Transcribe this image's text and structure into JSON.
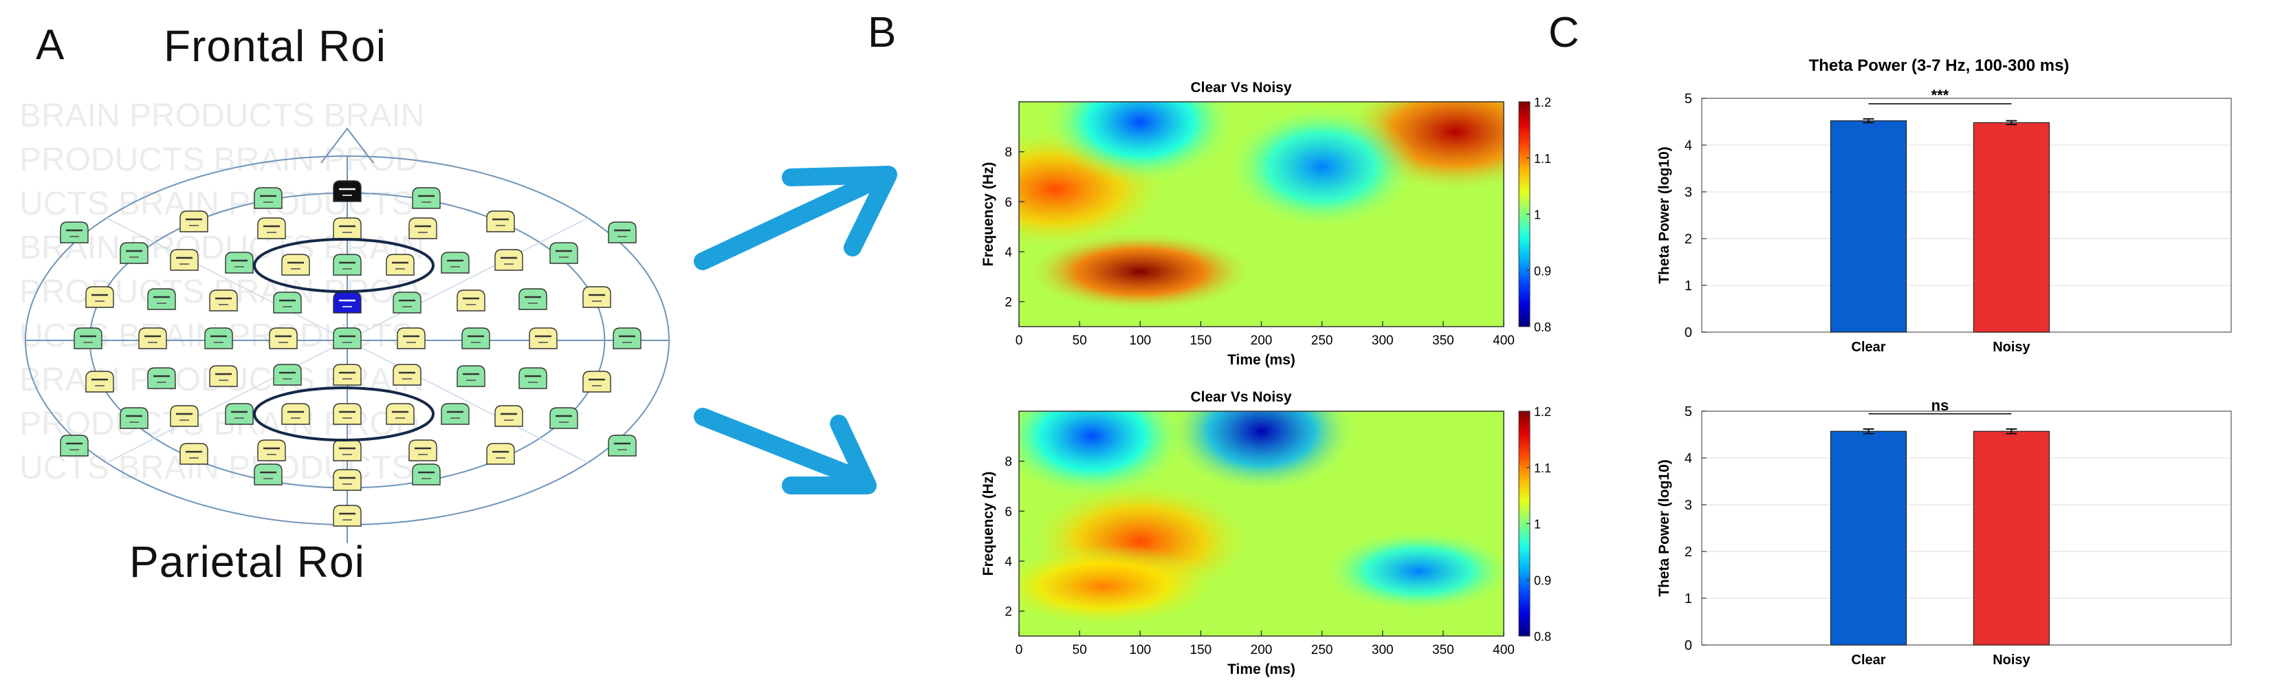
{
  "panel_labels": {
    "a": "A",
    "b": "B",
    "c": "C"
  },
  "montage": {
    "frontal_title": "Frontal Roi",
    "parietal_title": "Parietal Roi",
    "watermark_lines": [
      "BRAIN PRODUCTS     BRAIN",
      "PRODUCTS     BRAIN PROD-",
      "UCTS     BRAIN PRODUCTS",
      "BRAIN PRODUCTS     BRAIN",
      "PRODUCTS     BRAIN PROD-",
      "UCTS     BRAIN PRODUCTS",
      "BRAIN PRODUCTS     BRAIN",
      "PRODUCTS     BRAIN PROD-",
      "UCTS     BRAIN PRODUCTS"
    ],
    "colors": {
      "green": "#8ee6a6",
      "yellow": "#f6f0a0",
      "ground": "#111111",
      "reference": "#1a1ad6",
      "outline": "#6f94b8"
    }
  },
  "chart_data": [
    {
      "type": "heatmap",
      "title": "Clear Vs Noisy",
      "xlabel": "Time (ms)",
      "ylabel": "Frequency (Hz)",
      "x_ticks": [
        "0",
        "50",
        "100",
        "150",
        "200",
        "250",
        "300",
        "350",
        "400"
      ],
      "y_ticks": [
        "2",
        "4",
        "6",
        "8"
      ],
      "xlim": [
        0,
        400
      ],
      "ylim": [
        1,
        10
      ],
      "colorbar": {
        "ticks": [
          "0.8",
          "0.9",
          "1",
          "1.1",
          "1.2"
        ],
        "range": [
          0.8,
          1.2
        ],
        "colormap": "jet"
      },
      "features": [
        {
          "t": 100,
          "f": 3.2,
          "value": 1.2
        },
        {
          "t": 360,
          "f": 8.8,
          "value": 1.18
        },
        {
          "t": 30,
          "f": 6.5,
          "value": 1.12
        },
        {
          "t": 100,
          "f": 9.2,
          "value": 0.88
        },
        {
          "t": 250,
          "f": 7.4,
          "value": 0.9
        }
      ]
    },
    {
      "type": "heatmap",
      "title": "Clear Vs Noisy",
      "xlabel": "Time (ms)",
      "ylabel": "Frequency (Hz)",
      "x_ticks": [
        "0",
        "50",
        "100",
        "150",
        "200",
        "250",
        "300",
        "350",
        "400"
      ],
      "y_ticks": [
        "2",
        "4",
        "6",
        "8"
      ],
      "xlim": [
        0,
        400
      ],
      "ylim": [
        1,
        10
      ],
      "colorbar": {
        "ticks": [
          "0.8",
          "0.9",
          "1",
          "1.1",
          "1.2"
        ],
        "range": [
          0.8,
          1.2
        ],
        "colormap": "jet"
      },
      "features": [
        {
          "t": 100,
          "f": 4.8,
          "value": 1.12
        },
        {
          "t": 70,
          "f": 3.0,
          "value": 1.1
        },
        {
          "t": 200,
          "f": 9.2,
          "value": 0.82
        },
        {
          "t": 60,
          "f": 9.0,
          "value": 0.88
        },
        {
          "t": 330,
          "f": 3.6,
          "value": 0.9
        }
      ]
    },
    {
      "type": "bar",
      "title": "Theta Power (3-7 Hz, 100-300 ms)",
      "ylabel": "Theta Power (log10)",
      "categories": [
        "Clear",
        "Noisy"
      ],
      "values": [
        4.52,
        4.48
      ],
      "errors": [
        0.04,
        0.04
      ],
      "colors": [
        "#0a5fd0",
        "#e8302f"
      ],
      "ylim": [
        0,
        5
      ],
      "y_ticks": [
        "0",
        "1",
        "2",
        "3",
        "4",
        "5"
      ],
      "significance": "***",
      "grid": true
    },
    {
      "type": "bar",
      "ylabel": "Theta Power (log10)",
      "categories": [
        "Clear",
        "Noisy"
      ],
      "values": [
        4.57,
        4.57
      ],
      "errors": [
        0.05,
        0.05
      ],
      "colors": [
        "#0a5fd0",
        "#e8302f"
      ],
      "ylim": [
        0,
        5
      ],
      "y_ticks": [
        "0",
        "1",
        "2",
        "3",
        "4",
        "5"
      ],
      "significance": "ns",
      "grid": true
    }
  ]
}
